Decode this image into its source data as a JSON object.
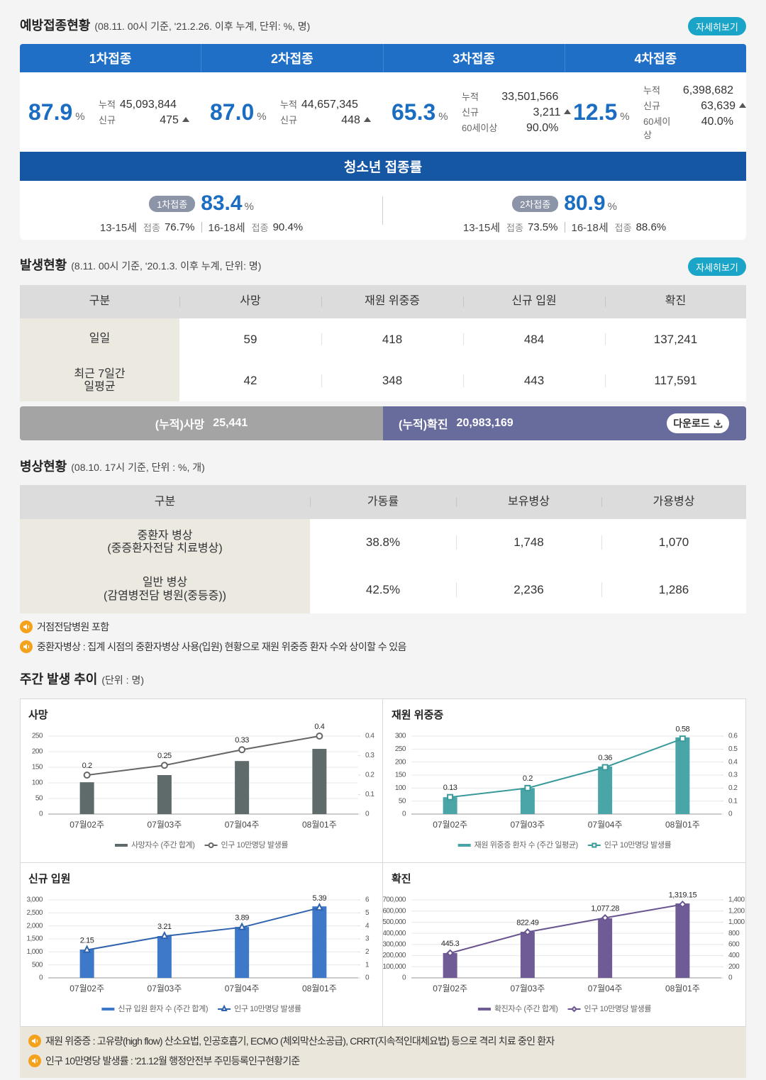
{
  "vaccination": {
    "title": "예방접종현황",
    "note": "(08.11. 00시 기준, '21.2.26. 이후 누계, 단위: %, 명)",
    "button": "자세히보기",
    "doses": [
      {
        "name": "1차접종",
        "rate": "87.9",
        "unit": "%",
        "rows": [
          {
            "label": "누적",
            "value": "45,093,844"
          },
          {
            "label": "신규",
            "value": "475"
          }
        ]
      },
      {
        "name": "2차접종",
        "rate": "87.0",
        "unit": "%",
        "rows": [
          {
            "label": "누적",
            "value": "44,657,345"
          },
          {
            "label": "신규",
            "value": "448"
          }
        ]
      },
      {
        "name": "3차접종",
        "rate": "65.3",
        "unit": "%",
        "rows": [
          {
            "label": "누적",
            "value": "33,501,566"
          },
          {
            "label": "신규",
            "value": "3,211"
          },
          {
            "label": "60세이상",
            "value": "90.0%"
          }
        ]
      },
      {
        "name": "4차접종",
        "rate": "12.5",
        "unit": "%",
        "rows": [
          {
            "label": "누적",
            "value": "6,398,682"
          },
          {
            "label": "신규",
            "value": "63,639"
          },
          {
            "label": "60세이상",
            "value": "40.0%"
          }
        ]
      }
    ]
  },
  "youth": {
    "title": "청소년 접종률",
    "items": [
      {
        "badge": "1차접종",
        "rate": "83.4",
        "unit": "%",
        "groups": [
          {
            "age": "13-15세",
            "label": "접종",
            "value": "76.7%"
          },
          {
            "age": "16-18세",
            "label": "접종",
            "value": "90.4%"
          }
        ]
      },
      {
        "badge": "2차접종",
        "rate": "80.9",
        "unit": "%",
        "groups": [
          {
            "age": "13-15세",
            "label": "접종",
            "value": "73.5%"
          },
          {
            "age": "16-18세",
            "label": "접종",
            "value": "88.6%"
          }
        ]
      }
    ]
  },
  "occurrence": {
    "title": "발생현황",
    "note": "(8.11. 00시 기준, '20.1.3. 이후 누계, 단위: 명)",
    "button": "자세히보기",
    "header": [
      "구분",
      "사망",
      "재원 위중증",
      "신규 입원",
      "확진"
    ],
    "rows": [
      [
        "일일",
        "59",
        "418",
        "484",
        "137,241"
      ],
      [
        "최근 7일간 일평균",
        "42",
        "348",
        "443",
        "117,591"
      ]
    ],
    "totals": [
      {
        "label": "(누적)사망",
        "value": "25,441"
      },
      {
        "label": "(누적)확진",
        "value": "20,983,169"
      }
    ],
    "download": "다운로드"
  },
  "beds": {
    "title": "병상현황",
    "note": "(08.10. 17시 기준, 단위 : %, 개)",
    "header": [
      "구분",
      "가동률",
      "보유병상",
      "가용병상"
    ],
    "rows": [
      {
        "name": [
          "중환자 병상",
          "(중증환자전담 치료병상)"
        ],
        "values": [
          "38.8%",
          "1,748",
          "1,070"
        ]
      },
      {
        "name": [
          "일반 병상",
          "(감염병전담 병원(중등증))"
        ],
        "values": [
          "42.5%",
          "2,236",
          "1,286"
        ]
      }
    ],
    "notes": [
      "거점전담병원 포함",
      "중환자병상 : 집계 시점의 중환자병상 사용(입원) 현황으로 재원 위중증 환자 수와 상이할 수 있음"
    ]
  },
  "weekly": {
    "title": "주간 발생 추이",
    "note": "(단위 : 명)",
    "notes": [
      "재원 위중증 : 고유량(high flow) 산소요법, 인공호흡기, ECMO (체외막산소공급), CRRT(지속적인대체요법) 등으로 격리 치료 중인 환자",
      "인구 10만명당 발생률 : '21.12월 행정안전부 주민등록인구현황기준"
    ]
  },
  "chart_data": [
    {
      "type": "combo",
      "title": "사망",
      "categories": [
        "07월02주",
        "07월03주",
        "07월04주",
        "08월01주"
      ],
      "series": [
        {
          "name": "사망자수 (주간 합계)",
          "type": "bar",
          "color": "#5f6a6b",
          "values": [
            102,
            125,
            170,
            209
          ]
        },
        {
          "name": "인구 10만명당 발생률",
          "type": "line",
          "axis": "y2",
          "marker": "circle",
          "color": "#666666",
          "values": [
            0.2,
            0.25,
            0.33,
            0.4
          ]
        }
      ],
      "ylim": [
        0,
        250
      ],
      "yticks": [
        0,
        50,
        100,
        150,
        200,
        250
      ],
      "y2lim": [
        0,
        0.4
      ],
      "y2ticks": [
        0,
        0.1,
        0.2,
        0.3,
        0.4
      ],
      "grid": true
    },
    {
      "type": "combo",
      "title": "재원 위중증",
      "categories": [
        "07월02주",
        "07월03주",
        "07월04주",
        "08월01주"
      ],
      "series": [
        {
          "name": "재원 위중증 환자 수 (주간 일평균)",
          "type": "bar",
          "color": "#4aa5a8",
          "values": [
            65,
            100,
            183,
            295
          ]
        },
        {
          "name": "인구 10만명당 발생률",
          "type": "line",
          "axis": "y2",
          "marker": "square",
          "color": "#3a9a9b",
          "values": [
            0.13,
            0.2,
            0.36,
            0.58
          ]
        }
      ],
      "ylim": [
        0,
        300
      ],
      "yticks": [
        0,
        50,
        100,
        150,
        200,
        250,
        300
      ],
      "y2lim": [
        0,
        0.6
      ],
      "y2ticks": [
        0,
        0.1,
        0.2,
        0.3,
        0.4,
        0.5,
        0.6
      ],
      "grid": true
    },
    {
      "type": "combo",
      "title": "신규 입원",
      "categories": [
        "07월02주",
        "07월03주",
        "07월04주",
        "08월01주"
      ],
      "series": [
        {
          "name": "신규 입원 환자 수 (주간 합계)",
          "type": "bar",
          "color": "#3d78c9",
          "values": [
            1090,
            1610,
            1960,
            2750
          ]
        },
        {
          "name": "인구 10만명당 발생률",
          "type": "line",
          "axis": "y2",
          "marker": "triangle",
          "color": "#2f63ad",
          "values": [
            2.15,
            3.21,
            3.89,
            5.39
          ]
        }
      ],
      "ylim": [
        0,
        3000
      ],
      "yticks": [
        0,
        500,
        {
          "value": 1000,
          "label": "1,000"
        },
        {
          "value": 1500,
          "label": "1,500"
        },
        {
          "value": 2000,
          "label": "2,000"
        },
        {
          "value": 2500,
          "label": "2,500"
        },
        {
          "value": 3000,
          "label": "3,000"
        }
      ],
      "y2lim": [
        0,
        6
      ],
      "y2ticks": [
        0,
        1,
        2,
        3,
        4,
        5,
        6
      ],
      "grid": true
    },
    {
      "type": "combo",
      "title": "확진",
      "categories": [
        "07월02주",
        "07월03주",
        "07월04주",
        "08월01주"
      ],
      "series": [
        {
          "name": "확진자수 (주간 합계)",
          "type": "bar",
          "color": "#6f5b95",
          "values": [
            223000,
            414000,
            535000,
            668000
          ]
        },
        {
          "name": "인구 10만명당 발생률",
          "type": "line",
          "axis": "y2",
          "marker": "diamond",
          "color": "#6a5590",
          "values": [
            445.3,
            822.49,
            1077.28,
            1319.15
          ],
          "value_labels": [
            "445.3",
            "822.49",
            "1,077.28",
            "1,319.15"
          ]
        }
      ],
      "ylim": [
        0,
        700000
      ],
      "yticks": [
        0,
        {
          "value": 100000,
          "label": "100,000"
        },
        {
          "value": 200000,
          "label": "200,000"
        },
        {
          "value": 300000,
          "label": "300,000"
        },
        {
          "value": 400000,
          "label": "400,000"
        },
        {
          "value": 500000,
          "label": "500,000"
        },
        {
          "value": 600000,
          "label": "600,000"
        },
        {
          "value": 700000,
          "label": "700,000"
        }
      ],
      "y2lim": [
        0,
        1400
      ],
      "y2ticks": [
        0,
        200,
        400,
        600,
        800,
        {
          "value": 1000,
          "label": "1,000"
        },
        {
          "value": 1200,
          "label": "1,200"
        },
        {
          "value": 1400,
          "label": "1,400"
        }
      ],
      "grid": true
    }
  ]
}
